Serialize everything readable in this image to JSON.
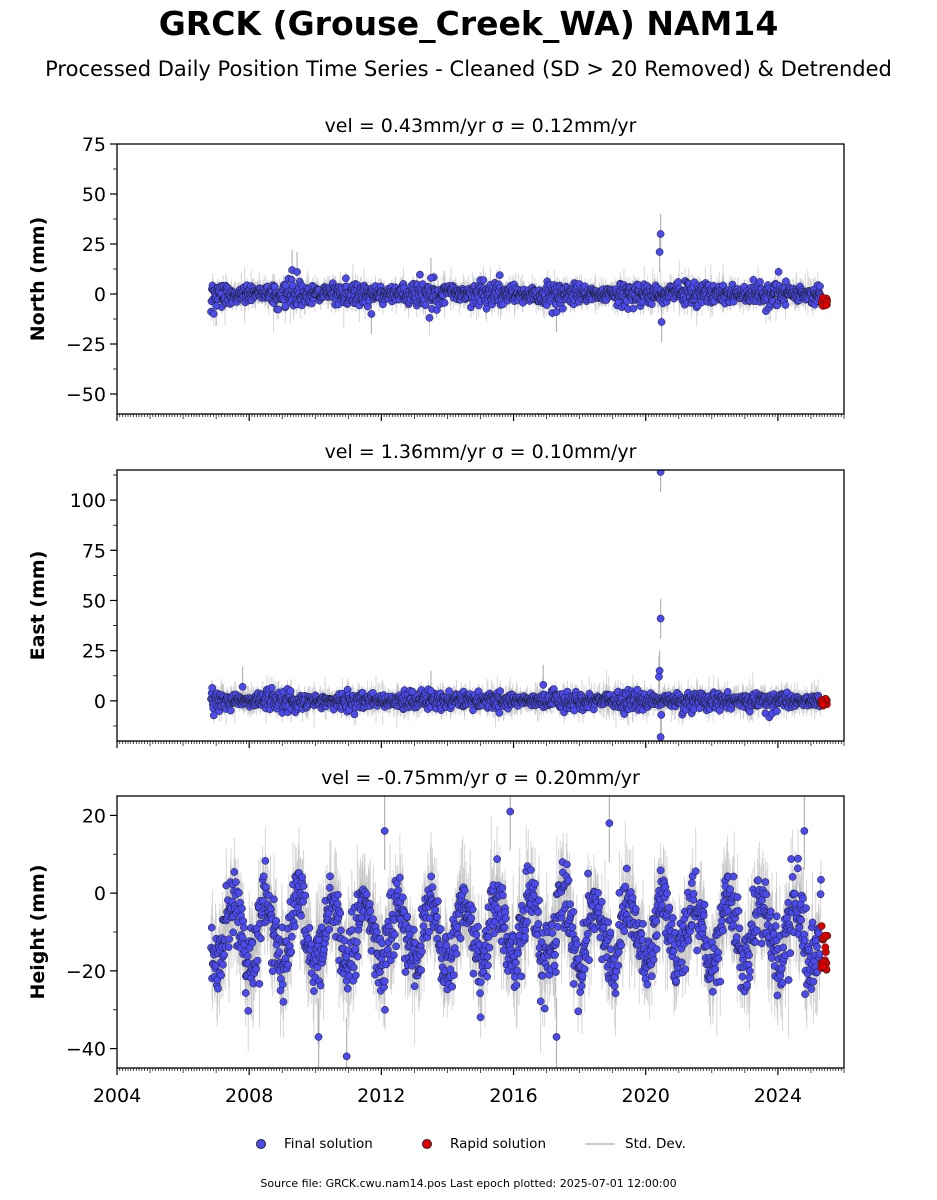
{
  "title": "GRCK (Grouse_Creek_WA) NAM14",
  "subtitle": "Processed Daily Position Time Series - Cleaned (SD > 20 Removed) & Detrended",
  "legend": {
    "final": "Final solution",
    "rapid": "Rapid solution",
    "std": "Std. Dev."
  },
  "footer": "Source file: GRCK.cwu.nam14.pos  Last epoch plotted: 2025-07-01 12:00:00",
  "colors": {
    "final_fill": "#4a4aee",
    "rapid_fill": "#e00000",
    "marker_edge": "#1a1a1a",
    "std_line": "#b4b4b4"
  },
  "chart_data": [
    {
      "type": "scatter",
      "title": "vel = 0.43mm/yr   σ = 0.12mm/yr",
      "ylabel": "North (mm)",
      "xlim": [
        2004,
        2026
      ],
      "ylim": [
        -60,
        75
      ],
      "yticks": [
        -50,
        -25,
        0,
        25,
        50,
        75
      ],
      "ytick_labels": [
        "−50",
        "−25",
        "0",
        "25",
        "50",
        "75"
      ],
      "xticks": [
        2004,
        2008,
        2012,
        2016,
        2020,
        2024
      ],
      "xtick_labels": [],
      "grid": false,
      "series": [
        {
          "name": "Final solution",
          "x_range": [
            2006.85,
            2025.3
          ],
          "typical_scatter": 2.5,
          "outliers": [
            [
              2020.45,
              30
            ],
            [
              2020.42,
              21
            ],
            [
              2020.48,
              -14
            ],
            [
              2009.3,
              12
            ],
            [
              2009.45,
              11
            ],
            [
              2013.5,
              8
            ],
            [
              2007.0,
              -6
            ],
            [
              2011.7,
              -10
            ],
            [
              2017.3,
              -9
            ]
          ]
        },
        {
          "name": "Rapid solution",
          "x_range": [
            2025.3,
            2025.5
          ],
          "y_range": [
            -6,
            -1
          ]
        }
      ]
    },
    {
      "type": "scatter",
      "title": "vel = 1.36mm/yr   σ = 0.10mm/yr",
      "ylabel": "East (mm)",
      "xlim": [
        2004,
        2026
      ],
      "ylim": [
        -20,
        115
      ],
      "yticks": [
        0,
        25,
        50,
        75,
        100
      ],
      "ytick_labels": [
        "0",
        "25",
        "50",
        "75",
        "100"
      ],
      "xticks": [
        2004,
        2008,
        2012,
        2016,
        2020,
        2024
      ],
      "xtick_labels": [],
      "grid": false,
      "series": [
        {
          "name": "Final solution",
          "x_range": [
            2006.85,
            2025.3
          ],
          "typical_scatter": 2.0,
          "outliers": [
            [
              2020.45,
              114
            ],
            [
              2020.45,
              41
            ],
            [
              2020.42,
              15
            ],
            [
              2020.4,
              12
            ],
            [
              2020.45,
              -18
            ],
            [
              2020.47,
              -7
            ],
            [
              2007.8,
              7
            ],
            [
              2016.9,
              8
            ],
            [
              2013.5,
              5
            ]
          ]
        },
        {
          "name": "Rapid solution",
          "x_range": [
            2025.3,
            2025.5
          ],
          "y_range": [
            -3,
            1
          ]
        }
      ]
    },
    {
      "type": "scatter",
      "title": "vel = -0.75mm/yr   σ = 0.20mm/yr",
      "ylabel": "Height (mm)",
      "xlim": [
        2004,
        2026
      ],
      "ylim": [
        -45,
        25
      ],
      "yticks": [
        -40,
        -20,
        0,
        20
      ],
      "ytick_labels": [
        "−40",
        "−20",
        "0",
        "20"
      ],
      "xticks": [
        2004,
        2008,
        2012,
        2016,
        2020,
        2024
      ],
      "xtick_labels": [
        "2004",
        "2008",
        "2012",
        "2016",
        "2020",
        "2024"
      ],
      "grid": false,
      "series": [
        {
          "name": "Final solution",
          "x_range": [
            2006.85,
            2025.3
          ],
          "seasonal_amplitude": 8,
          "mean": -10,
          "typical_scatter": 4.5,
          "outliers": [
            [
              2010.95,
              -42
            ],
            [
              2015.9,
              21
            ],
            [
              2018.9,
              18
            ],
            [
              2024.8,
              16
            ],
            [
              2012.1,
              16
            ],
            [
              2017.3,
              -37
            ],
            [
              2010.1,
              -37
            ]
          ]
        },
        {
          "name": "Rapid solution",
          "x_range": [
            2025.3,
            2025.5
          ],
          "y_range": [
            -20,
            -7
          ]
        }
      ]
    }
  ]
}
